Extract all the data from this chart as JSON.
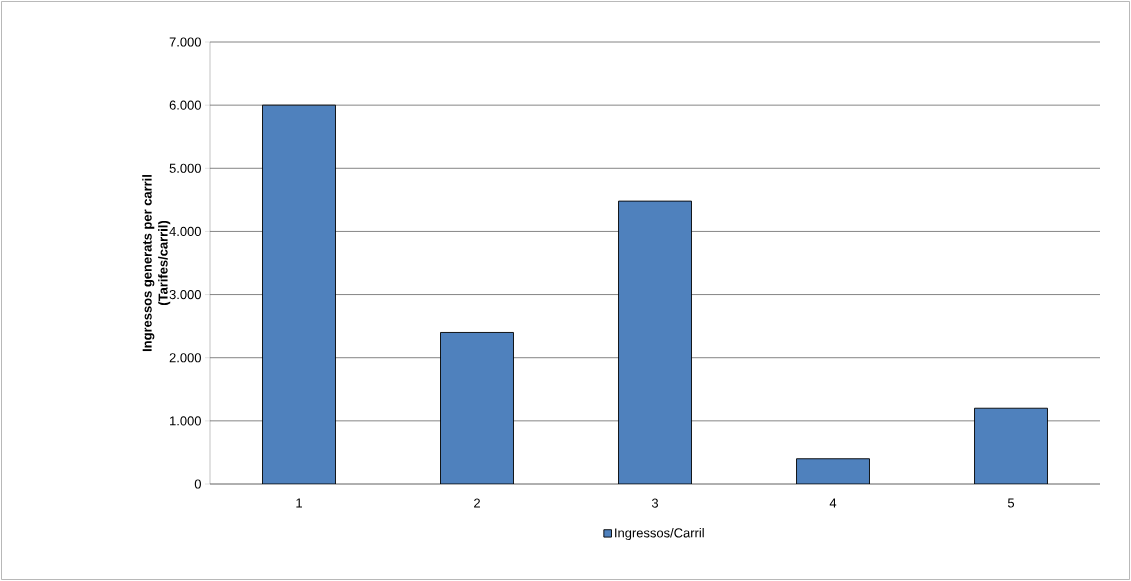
{
  "chart_data": {
    "type": "bar",
    "ylabel": "Ingressos generats per carril\n(Tarifes/carril)",
    "categories": [
      "1",
      "2",
      "3",
      "4",
      "5"
    ],
    "series": [
      {
        "name": "Ingressos/Carril",
        "color": "#4f81bd",
        "values": [
          6000,
          2400,
          4480,
          400,
          1200
        ]
      }
    ],
    "ylim": [
      0,
      7000
    ],
    "yticks": [
      {
        "value": 0,
        "label": "0"
      },
      {
        "value": 1000,
        "label": "1.000"
      },
      {
        "value": 2000,
        "label": "2.000"
      },
      {
        "value": 3000,
        "label": "3.000"
      },
      {
        "value": 4000,
        "label": "4.000"
      },
      {
        "value": 5000,
        "label": "5.000"
      },
      {
        "value": 6000,
        "label": "6.000"
      },
      {
        "value": 7000,
        "label": "7.000"
      }
    ],
    "grid": "y",
    "legend": "bottom"
  }
}
